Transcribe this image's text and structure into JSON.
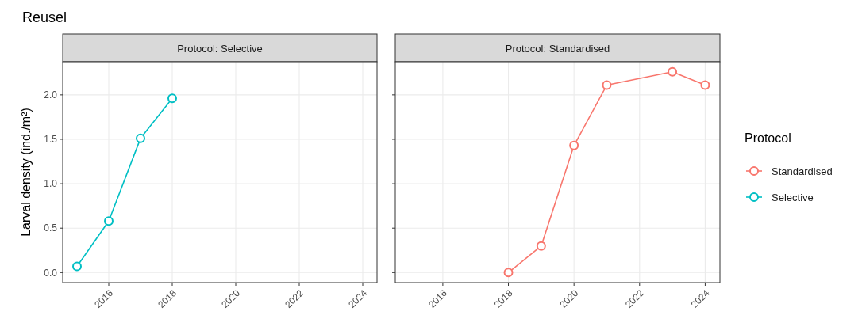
{
  "chart_data": [
    {
      "type": "line",
      "title": "Reusel",
      "subtitle": "Protocol: Selective",
      "ylabel": "Larval density (ind./m²)",
      "xlim": [
        2014.55,
        2024.45
      ],
      "xticks": [
        2016,
        2018,
        2020,
        2022,
        2024
      ],
      "ylim": [
        -0.113,
        2.373
      ],
      "yticks": [
        {
          "value": 0,
          "label": "0.0"
        },
        {
          "value": 0.5,
          "label": "0.5"
        },
        {
          "value": 1,
          "label": "1.0"
        },
        {
          "value": 1.5,
          "label": "1.5"
        },
        {
          "value": 2,
          "label": "2.0"
        }
      ],
      "grid": true,
      "marker": "circle",
      "line_style": "solid",
      "series": [
        {
          "name": "Selective",
          "color": "#00bfc4",
          "x": [
            2015,
            2016,
            2017,
            2018
          ],
          "values": [
            0.07,
            0.58,
            1.51,
            1.96
          ]
        }
      ]
    },
    {
      "type": "line",
      "subtitle": "Protocol: Standardised",
      "xlim": [
        2014.55,
        2024.45
      ],
      "xticks": [
        2016,
        2018,
        2020,
        2022,
        2024
      ],
      "ylim": [
        -0.113,
        2.373
      ],
      "yticks": [
        {
          "value": 0,
          "label": null
        },
        {
          "value": 0.5,
          "label": null
        },
        {
          "value": 1,
          "label": null
        },
        {
          "value": 1.5,
          "label": null
        },
        {
          "value": 2,
          "label": null
        }
      ],
      "tick_labels": "x",
      "grid": true,
      "marker": "circle",
      "line_style": "solid",
      "legend": "right",
      "legend_title": "Protocol",
      "series": [
        {
          "name": "Standardised",
          "color": "#f8766d",
          "x": [
            2018,
            2019,
            2020,
            2021,
            2023,
            2024
          ],
          "values": [
            0,
            0.3,
            1.43,
            2.11,
            2.26,
            2.11
          ]
        }
      ]
    }
  ]
}
